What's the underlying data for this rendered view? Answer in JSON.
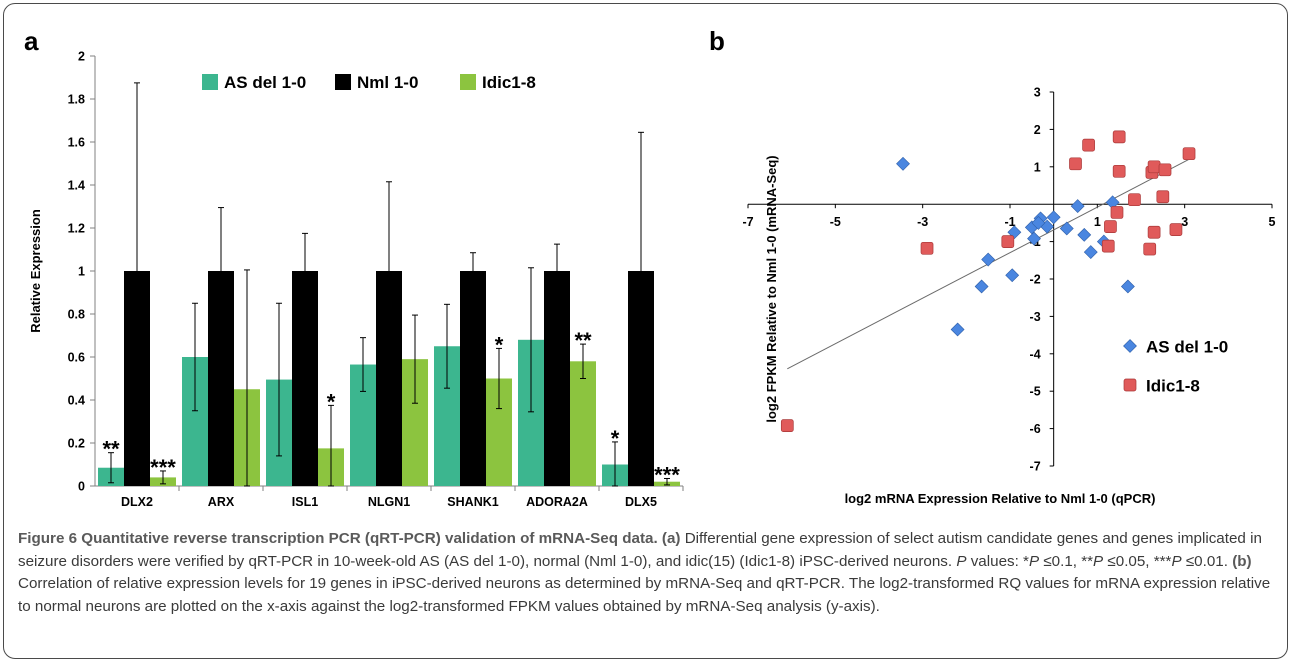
{
  "figure": {
    "panel_a_letter": "a",
    "panel_b_letter": "b"
  },
  "caption": {
    "title": "Figure 6 Quantitative reverse transcription PCR (qRT-PCR) validation of mRNA-Seq data.",
    "part_a_label": "(a)",
    "part_a_text": " Differential gene expression of select autism candidate genes and genes implicated in seizure disorders were verified by qRT-PCR in 10-week-old AS (AS del 1-0), normal (Nml 1-0), and idic(15) (Idic1-8) iPSC-derived neurons. ",
    "p_values_1": " values: *",
    "p_values_2": " ≤0.1, **",
    "p_values_3": " ≤0.05, ***",
    "p_values_4": " ≤0.01. ",
    "italic_p": "P",
    "part_b_label": "(b)",
    "part_b_text": " Correlation of relative expression levels for 19 genes in iPSC-derived neurons as determined by mRNA-Seq and qRT-PCR. The log2-transformed RQ values for mRNA expression relative to normal neurons are plotted on the x-axis against the log2-transformed FPKM values obtained by mRNA-Seq analysis (y-axis)."
  },
  "chart_data": [
    {
      "type": "bar",
      "title": "",
      "xlabel": "",
      "ylabel": "Relative Expression",
      "ylim": [
        0,
        2
      ],
      "yticks": [
        "0",
        "0.2",
        "0.4",
        "0.6",
        "0.8",
        "1",
        "1.2",
        "1.4",
        "1.6",
        "1.8",
        "2"
      ],
      "grid": false,
      "legend_position": "top",
      "categories": [
        "DLX2",
        "ARX",
        "ISL1",
        "NLGN1",
        "SHANK1",
        "ADORA2A",
        "DLX5"
      ],
      "series": [
        {
          "name": "AS del 1-0",
          "color": "#3cb68f",
          "values": [
            0.085,
            0.6,
            0.495,
            0.565,
            0.65,
            0.68,
            0.1
          ],
          "errors": [
            0.07,
            0.25,
            0.355,
            0.125,
            0.195,
            0.335,
            0.105
          ],
          "sig": [
            "**",
            "",
            "",
            "",
            "",
            "",
            "*"
          ]
        },
        {
          "name": "Nml 1-0",
          "color": "#000000",
          "values": [
            1,
            1,
            1,
            1,
            1,
            1,
            1
          ],
          "errors": [
            0.875,
            0.295,
            0.175,
            0.415,
            0.085,
            0.125,
            0.645
          ],
          "sig": [
            "",
            "",
            "",
            "",
            "",
            "",
            ""
          ]
        },
        {
          "name": "Idic1-8",
          "color": "#8cc43f",
          "values": [
            0.04,
            0.45,
            0.175,
            0.59,
            0.5,
            0.58,
            0.02
          ],
          "errors": [
            0.03,
            0.555,
            0.2,
            0.205,
            0.14,
            0.08,
            0.015
          ],
          "sig": [
            "***",
            "",
            "*",
            "",
            "*",
            "**",
            "***"
          ]
        }
      ]
    },
    {
      "type": "scatter",
      "title": "",
      "xlabel": "log2 mRNA Expression Relative to Nml 1-0 (qPCR)",
      "ylabel": "log2 FPKM Relative to Nml 1-0 (mRNA-Seq)",
      "xlim": [
        -7,
        5
      ],
      "ylim": [
        -7,
        3
      ],
      "xticks": [
        "-7",
        "-5",
        "-3",
        "-1",
        "1",
        "3",
        "5"
      ],
      "yticks": [
        "-7",
        "-6",
        "-5",
        "-4",
        "-3",
        "-2",
        "-1",
        "1",
        "2",
        "3"
      ],
      "grid": false,
      "legend_position": "bottom-right",
      "trendline": {
        "x": [
          -6.1,
          3.1
        ],
        "y": [
          -4.4,
          1.2
        ]
      },
      "series": [
        {
          "name": "AS del 1-0",
          "marker": "diamond",
          "color": "#4a86e0",
          "points": [
            [
              -3.45,
              1.08
            ],
            [
              -0.5,
              -0.62
            ],
            [
              -0.3,
              -0.38
            ],
            [
              -0.15,
              -0.6
            ],
            [
              0.0,
              -0.35
            ],
            [
              0.3,
              -0.65
            ],
            [
              0.55,
              -0.05
            ],
            [
              0.7,
              -0.82
            ],
            [
              0.85,
              -1.28
            ],
            [
              1.15,
              -1.0
            ],
            [
              1.35,
              0.05
            ],
            [
              1.7,
              -2.2
            ],
            [
              -0.45,
              -0.92
            ],
            [
              -0.35,
              -0.5
            ],
            [
              -0.9,
              -0.75
            ],
            [
              -0.95,
              -1.9
            ],
            [
              -1.5,
              -1.48
            ],
            [
              -1.65,
              -2.2
            ],
            [
              -2.2,
              -3.35
            ]
          ]
        },
        {
          "name": "Idic1-8",
          "marker": "square",
          "color": "#e05a5a",
          "points": [
            [
              -6.1,
              -5.92
            ],
            [
              -2.9,
              -1.18
            ],
            [
              -1.05,
              -1.0
            ],
            [
              0.5,
              1.08
            ],
            [
              0.8,
              1.58
            ],
            [
              1.5,
              1.8
            ],
            [
              1.5,
              0.88
            ],
            [
              1.45,
              -0.22
            ],
            [
              1.25,
              -1.12
            ],
            [
              1.3,
              -0.6
            ],
            [
              1.85,
              0.12
            ],
            [
              2.25,
              0.85
            ],
            [
              2.3,
              1.0
            ],
            [
              2.55,
              0.92
            ],
            [
              2.5,
              0.2
            ],
            [
              2.3,
              -0.75
            ],
            [
              2.2,
              -1.2
            ],
            [
              2.8,
              -0.68
            ],
            [
              3.1,
              1.35
            ]
          ]
        }
      ]
    }
  ]
}
